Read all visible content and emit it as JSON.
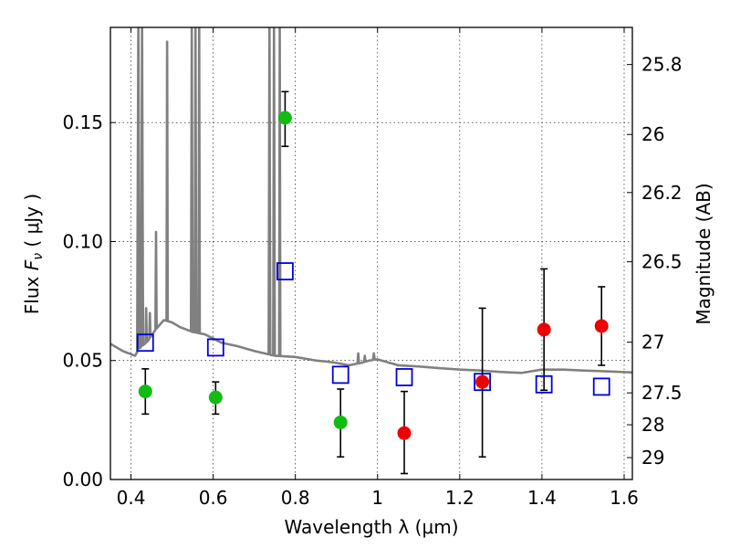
{
  "chart_data": {
    "type": "scatter",
    "xlabel": "Wavelength  λ (μm)",
    "ylabel_left": "Flux  F_ν  ( μJy )",
    "ylabel_right": "Magnitude (AB)",
    "xlim": [
      0.35,
      1.62
    ],
    "ylim": [
      0.0,
      0.19
    ],
    "grid": true,
    "x_ticks": [
      0.4,
      0.6,
      0.8,
      1.0,
      1.2,
      1.4,
      1.6
    ],
    "x_tick_labels": [
      "0.4",
      "0.6",
      "0.8",
      "1",
      "1.2",
      "1.4",
      "1.6"
    ],
    "y_ticks": [
      0.0,
      0.05,
      0.1,
      0.15
    ],
    "y_tick_labels": [
      "0.00",
      "0.05",
      "0.10",
      "0.15"
    ],
    "right_ticks": [
      {
        "label": "25.8",
        "flux": 0.1744
      },
      {
        "label": "26",
        "flux": 0.145
      },
      {
        "label": "26.2",
        "flux": 0.1206
      },
      {
        "label": "26.5",
        "flux": 0.0915
      },
      {
        "label": "27",
        "flux": 0.0577
      },
      {
        "label": "27.5",
        "flux": 0.0364
      },
      {
        "label": "28",
        "flux": 0.023
      },
      {
        "label": "29",
        "flux": 0.0092
      }
    ],
    "series": [
      {
        "marker": "circle",
        "color": "#11bb11",
        "points": [
          {
            "x": 0.435,
            "y": 0.037,
            "err_low": 0.0095,
            "err_high": 0.0095
          },
          {
            "x": 0.606,
            "y": 0.0345,
            "err_low": 0.007,
            "err_high": 0.0065
          },
          {
            "x": 0.775,
            "y": 0.152,
            "err_low": 0.012,
            "err_high": 0.011
          },
          {
            "x": 0.91,
            "y": 0.024,
            "err_low": 0.0145,
            "err_high": 0.014
          }
        ]
      },
      {
        "marker": "circle",
        "color": "#ee0000",
        "points": [
          {
            "x": 1.065,
            "y": 0.0195,
            "err_low": 0.017,
            "err_high": 0.0175
          },
          {
            "x": 1.255,
            "y": 0.041,
            "err_low": 0.0315,
            "err_high": 0.031
          },
          {
            "x": 1.405,
            "y": 0.063,
            "err_low": 0.0255,
            "err_high": 0.0255
          },
          {
            "x": 1.545,
            "y": 0.0645,
            "err_low": 0.0165,
            "err_high": 0.0165
          }
        ]
      },
      {
        "marker": "open-square",
        "color": "#0000dd",
        "points": [
          {
            "x": 0.435,
            "y": 0.0575
          },
          {
            "x": 0.606,
            "y": 0.0555
          },
          {
            "x": 0.775,
            "y": 0.0875
          },
          {
            "x": 0.91,
            "y": 0.044
          },
          {
            "x": 1.065,
            "y": 0.043
          },
          {
            "x": 1.255,
            "y": 0.041
          },
          {
            "x": 1.405,
            "y": 0.04
          },
          {
            "x": 1.545,
            "y": 0.039
          }
        ]
      }
    ],
    "spectrum": {
      "color": "#808080",
      "continuum": [
        [
          0.35,
          0.057
        ],
        [
          0.38,
          0.054
        ],
        [
          0.41,
          0.052
        ],
        [
          0.42,
          0.055
        ],
        [
          0.44,
          0.058
        ],
        [
          0.46,
          0.063
        ],
        [
          0.48,
          0.067
        ],
        [
          0.5,
          0.066
        ],
        [
          0.52,
          0.064
        ],
        [
          0.55,
          0.062
        ],
        [
          0.58,
          0.061
        ],
        [
          0.62,
          0.0575
        ],
        [
          0.66,
          0.056
        ],
        [
          0.7,
          0.054
        ],
        [
          0.75,
          0.052
        ],
        [
          0.8,
          0.0515
        ],
        [
          0.85,
          0.05
        ],
        [
          0.88,
          0.0495
        ],
        [
          0.9,
          0.049
        ],
        [
          0.93,
          0.048
        ],
        [
          0.96,
          0.049
        ],
        [
          0.98,
          0.05
        ],
        [
          1.0,
          0.0505
        ],
        [
          1.03,
          0.049
        ],
        [
          1.05,
          0.048
        ],
        [
          1.1,
          0.0475
        ],
        [
          1.15,
          0.0468
        ],
        [
          1.2,
          0.0462
        ],
        [
          1.25,
          0.0458
        ],
        [
          1.3,
          0.0452
        ],
        [
          1.35,
          0.0448
        ],
        [
          1.4,
          0.0462
        ],
        [
          1.45,
          0.0462
        ],
        [
          1.5,
          0.0458
        ],
        [
          1.55,
          0.0455
        ],
        [
          1.62,
          0.045
        ]
      ],
      "lines": [
        {
          "x": 0.418,
          "peak": 0.19,
          "width": 0.006
        },
        {
          "x": 0.427,
          "peak": 0.19,
          "width": 0.005
        },
        {
          "x": 0.437,
          "peak": 0.072,
          "width": 0.003
        },
        {
          "x": 0.446,
          "peak": 0.07,
          "width": 0.003
        },
        {
          "x": 0.461,
          "peak": 0.104,
          "width": 0.003
        },
        {
          "x": 0.488,
          "peak": 0.184,
          "width": 0.003
        },
        {
          "x": 0.548,
          "peak": 0.19,
          "width": 0.004
        },
        {
          "x": 0.557,
          "peak": 0.19,
          "width": 0.004
        },
        {
          "x": 0.566,
          "peak": 0.19,
          "width": 0.003
        },
        {
          "x": 0.737,
          "peak": 0.19,
          "width": 0.004
        },
        {
          "x": 0.748,
          "peak": 0.19,
          "width": 0.004
        },
        {
          "x": 0.762,
          "peak": 0.19,
          "width": 0.003
        },
        {
          "x": 0.953,
          "peak": 0.053,
          "width": 0.004
        },
        {
          "x": 0.969,
          "peak": 0.052,
          "width": 0.004
        },
        {
          "x": 0.991,
          "peak": 0.053,
          "width": 0.004
        }
      ]
    }
  }
}
